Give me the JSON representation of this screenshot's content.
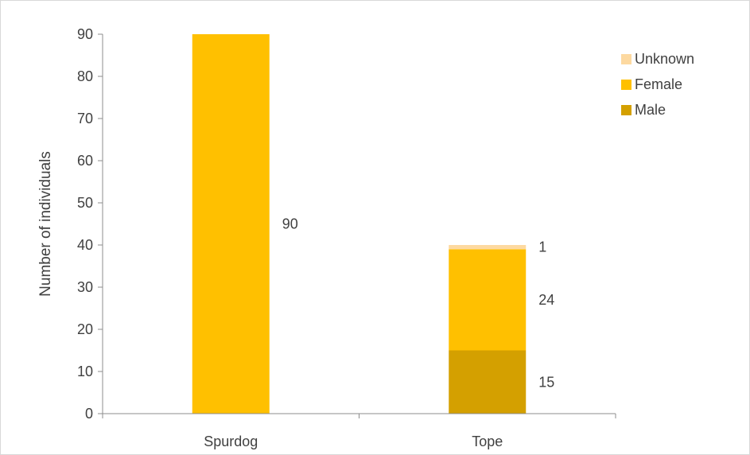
{
  "chart_data": {
    "type": "bar",
    "stacked": true,
    "title": "",
    "xlabel": "",
    "ylabel": "Number of individuals",
    "ylim": [
      0,
      90
    ],
    "yticks": [
      0,
      10,
      20,
      30,
      40,
      50,
      60,
      70,
      80,
      90
    ],
    "categories": [
      "Spurdog",
      "Tope"
    ],
    "series": [
      {
        "name": "Male",
        "color": "#d4a000",
        "values": [
          0,
          15
        ]
      },
      {
        "name": "Female",
        "color": "#ffc000",
        "values": [
          90,
          24
        ]
      },
      {
        "name": "Unknown",
        "color": "#fdd9a0",
        "values": [
          0,
          1
        ]
      }
    ],
    "legend": {
      "position": "right",
      "order": [
        "Unknown",
        "Female",
        "Male"
      ]
    },
    "grid": false
  }
}
